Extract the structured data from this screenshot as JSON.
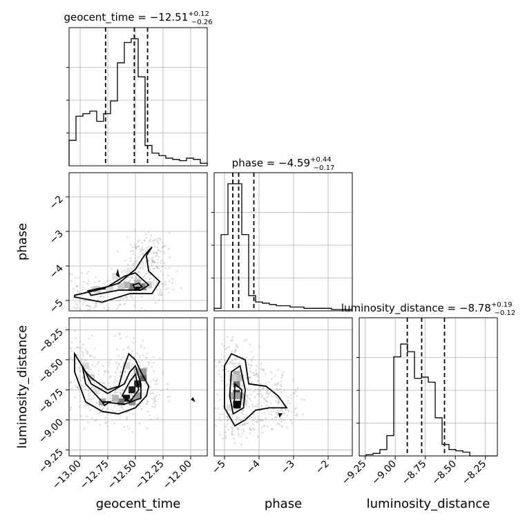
{
  "chart_data": {
    "type": "corner",
    "parameters": [
      "geocent_time",
      "phase",
      "luminosity_distance"
    ],
    "titles": [
      {
        "parameter": "geocent_time",
        "label": "geocent_time = ",
        "median": "−12.51",
        "plus": "+0.12",
        "minus": "−0.26"
      },
      {
        "parameter": "phase",
        "label": "phase = ",
        "median": "−4.59",
        "plus": "+0.44",
        "minus": "−0.17"
      },
      {
        "parameter": "luminosity_distance",
        "label": "luminosity_distance = ",
        "median": "−8.78",
        "plus": "+0.19",
        "minus": "−0.12"
      }
    ],
    "axes": {
      "geocent_time": {
        "range": [
          -13.1,
          -11.85
        ],
        "ticks": [
          -13.0,
          -12.75,
          -12.5,
          -12.25,
          -12.0
        ],
        "tick_labels": [
          "−13.00",
          "−12.75",
          "−12.50",
          "−12.25",
          "−12.00"
        ]
      },
      "phase": {
        "range": [
          -5.3,
          -1.3
        ],
        "ticks": [
          -5,
          -4,
          -3,
          -2
        ],
        "tick_labels": [
          "−5",
          "−4",
          "−3",
          "−2"
        ]
      },
      "luminosity_distance": {
        "range": [
          -9.3,
          -8.15
        ],
        "ticks": [
          -9.25,
          -9.0,
          -8.75,
          -8.5,
          -8.25
        ],
        "tick_labels": [
          "−9.25",
          "−9.00",
          "−8.75",
          "−8.50",
          "−8.25"
        ]
      }
    },
    "phase_y_axis": {
      "range": [
        -5.3,
        -1.3
      ],
      "ticks": [
        -5,
        -4,
        -3,
        -2
      ],
      "tick_labels": [
        "−5",
        "−4",
        "−3",
        "−2"
      ]
    },
    "lumdist_y_axis": {
      "range": [
        -9.3,
        -8.15
      ],
      "ticks": [
        -9.25,
        -9.0,
        -8.75,
        -8.5,
        -8.25
      ],
      "tick_labels": [
        "−9.25",
        "−9.00",
        "−8.75",
        "−8.50",
        "−8.25"
      ]
    },
    "histograms": {
      "geocent_time": {
        "counts": [
          0.2,
          0.39,
          0.41,
          0.43,
          0.35,
          0.41,
          0.51,
          0.81,
          0.97,
          1.0,
          0.7,
          0.16,
          0.1,
          0.08,
          0.06,
          0.05,
          0.04,
          0.06,
          0.05,
          0.02
        ],
        "quantiles": [
          -12.77,
          -12.51,
          -12.39
        ]
      },
      "phase": {
        "counts": [
          0.02,
          0.6,
          1.0,
          1.0,
          0.6,
          0.12,
          0.07,
          0.06,
          0.05,
          0.04,
          0.04,
          0.03,
          0.03,
          0.02,
          0.02,
          0.02,
          0.02,
          0.01,
          0.01,
          0.01
        ],
        "quantiles": [
          -4.76,
          -4.59,
          -4.15
        ]
      },
      "luminosity_distance": {
        "counts": [
          0.0,
          0.01,
          0.02,
          0.05,
          0.16,
          0.78,
          0.88,
          0.82,
          0.61,
          0.62,
          0.58,
          0.3,
          0.09,
          0.05,
          0.04,
          0.03,
          0.0,
          0.0,
          0.0,
          0.0
        ],
        "quantiles": [
          -8.9,
          -8.78,
          -8.59
        ]
      }
    },
    "contours": {
      "geocent_time_vs_phase": [
        [
          [
            -13.05,
            -4.85
          ],
          [
            -12.85,
            -4.7
          ],
          [
            -12.65,
            -4.5
          ],
          [
            -12.5,
            -4.1
          ],
          [
            -12.42,
            -3.7
          ],
          [
            -12.35,
            -3.45
          ],
          [
            -12.4,
            -3.7
          ],
          [
            -12.38,
            -4.15
          ],
          [
            -12.28,
            -4.45
          ],
          [
            -12.35,
            -4.8
          ],
          [
            -12.55,
            -4.8
          ],
          [
            -12.8,
            -5.05
          ],
          [
            -13.05,
            -4.9
          ]
        ],
        [
          [
            -12.93,
            -4.72
          ],
          [
            -12.75,
            -4.6
          ],
          [
            -12.6,
            -4.3
          ],
          [
            -12.5,
            -4.2
          ],
          [
            -12.45,
            -4.35
          ],
          [
            -12.38,
            -4.55
          ],
          [
            -12.45,
            -4.7
          ],
          [
            -12.65,
            -4.7
          ],
          [
            -12.9,
            -4.85
          ]
        ],
        [
          [
            -12.52,
            -4.55
          ],
          [
            -12.47,
            -4.5
          ],
          [
            -12.44,
            -4.6
          ],
          [
            -12.5,
            -4.68
          ]
        ],
        [
          [
            -12.83,
            -4.65
          ],
          [
            -12.77,
            -4.66
          ],
          [
            -12.83,
            -4.68
          ]
        ],
        [
          [
            -12.66,
            -4.15
          ],
          [
            -12.65,
            -4.3
          ],
          [
            -12.67,
            -4.25
          ]
        ]
      ],
      "geocent_time_vs_luminosity_distance": [
        [
          [
            -13.05,
            -8.45
          ],
          [
            -12.95,
            -8.6
          ],
          [
            -12.9,
            -8.65
          ],
          [
            -12.75,
            -8.75
          ],
          [
            -12.65,
            -8.72
          ],
          [
            -12.6,
            -8.55
          ],
          [
            -12.56,
            -8.45
          ],
          [
            -12.5,
            -8.5
          ],
          [
            -12.45,
            -8.6
          ],
          [
            -12.38,
            -8.72
          ],
          [
            -12.4,
            -8.8
          ],
          [
            -12.5,
            -8.9
          ],
          [
            -12.65,
            -8.95
          ],
          [
            -12.8,
            -8.93
          ],
          [
            -12.95,
            -8.85
          ],
          [
            -13.05,
            -8.6
          ]
        ],
        [
          [
            -12.98,
            -8.55
          ],
          [
            -12.9,
            -8.7
          ],
          [
            -12.75,
            -8.78
          ],
          [
            -12.6,
            -8.7
          ],
          [
            -12.55,
            -8.6
          ],
          [
            -12.5,
            -8.55
          ],
          [
            -12.45,
            -8.7
          ],
          [
            -12.45,
            -8.82
          ],
          [
            -12.6,
            -8.87
          ],
          [
            -12.8,
            -8.85
          ],
          [
            -12.95,
            -8.7
          ]
        ],
        [
          [
            -12.55,
            -8.68
          ],
          [
            -12.5,
            -8.62
          ],
          [
            -12.47,
            -8.75
          ],
          [
            -12.55,
            -8.85
          ],
          [
            -12.62,
            -8.8
          ]
        ],
        [
          [
            -12.8,
            -8.85
          ],
          [
            -12.73,
            -8.85
          ],
          [
            -12.78,
            -8.88
          ]
        ],
        [
          [
            -11.98,
            -8.82
          ],
          [
            -11.97,
            -8.84
          ],
          [
            -11.99,
            -8.83
          ]
        ]
      ],
      "phase_vs_luminosity_distance": [
        [
          [
            -5.0,
            -8.55
          ],
          [
            -4.8,
            -8.45
          ],
          [
            -4.4,
            -8.5
          ],
          [
            -4.3,
            -8.7
          ],
          [
            -3.8,
            -8.72
          ],
          [
            -3.45,
            -8.8
          ],
          [
            -3.2,
            -8.9
          ],
          [
            -3.7,
            -8.9
          ],
          [
            -4.1,
            -8.92
          ],
          [
            -4.4,
            -9.0
          ],
          [
            -4.7,
            -9.05
          ],
          [
            -5.0,
            -8.9
          ]
        ],
        [
          [
            -4.8,
            -8.6
          ],
          [
            -4.55,
            -8.55
          ],
          [
            -4.4,
            -8.75
          ],
          [
            -4.45,
            -8.9
          ],
          [
            -4.75,
            -8.95
          ],
          [
            -4.85,
            -8.8
          ]
        ],
        [
          [
            -4.7,
            -8.7
          ],
          [
            -4.5,
            -8.75
          ],
          [
            -4.55,
            -8.9
          ],
          [
            -4.72,
            -8.9
          ]
        ],
        [
          [
            -3.42,
            -8.95
          ],
          [
            -3.35,
            -8.95
          ],
          [
            -3.4,
            -8.97
          ]
        ]
      ]
    },
    "density_cells": {
      "geocent_time_vs_phase": [
        [
          -12.48,
          -4.62,
          1.0
        ],
        [
          -12.53,
          -4.6,
          0.55
        ],
        [
          -12.43,
          -4.6,
          0.5
        ],
        [
          -12.58,
          -4.55,
          0.3
        ],
        [
          -12.48,
          -4.5,
          0.3
        ],
        [
          -12.63,
          -4.6,
          0.2
        ],
        [
          -12.38,
          -4.55,
          0.2
        ],
        [
          -12.73,
          -4.65,
          0.15
        ],
        [
          -12.85,
          -4.68,
          0.2
        ],
        [
          -12.68,
          -4.3,
          0.12
        ],
        [
          -12.55,
          -4.15,
          0.1
        ],
        [
          -12.45,
          -3.95,
          0.08
        ]
      ],
      "geocent_time_vs_luminosity_distance": [
        [
          -12.58,
          -8.82,
          0.95
        ],
        [
          -12.53,
          -8.75,
          0.9
        ],
        [
          -12.48,
          -8.7,
          0.85
        ],
        [
          -12.43,
          -8.65,
          0.6
        ],
        [
          -12.63,
          -8.85,
          0.55
        ],
        [
          -12.53,
          -8.85,
          0.45
        ],
        [
          -12.48,
          -8.8,
          0.4
        ],
        [
          -12.43,
          -8.6,
          0.4
        ],
        [
          -12.48,
          -8.6,
          0.35
        ],
        [
          -12.68,
          -8.82,
          0.3
        ],
        [
          -12.8,
          -8.85,
          0.35
        ],
        [
          -12.9,
          -8.65,
          0.2
        ],
        [
          -12.95,
          -8.55,
          0.15
        ],
        [
          -12.75,
          -8.75,
          0.12
        ],
        [
          -12.85,
          -8.75,
          0.12
        ],
        [
          -12.58,
          -8.55,
          0.15
        ]
      ],
      "phase_vs_luminosity_distance": [
        [
          -4.65,
          -8.87,
          1.0
        ],
        [
          -4.65,
          -8.78,
          0.75
        ],
        [
          -4.65,
          -8.7,
          0.55
        ],
        [
          -4.55,
          -8.8,
          0.4
        ],
        [
          -4.75,
          -8.8,
          0.35
        ],
        [
          -4.65,
          -8.62,
          0.3
        ],
        [
          -4.55,
          -8.65,
          0.25
        ],
        [
          -4.75,
          -8.65,
          0.2
        ],
        [
          -4.45,
          -8.85,
          0.15
        ],
        [
          -4.85,
          -8.9,
          0.12
        ]
      ]
    }
  }
}
